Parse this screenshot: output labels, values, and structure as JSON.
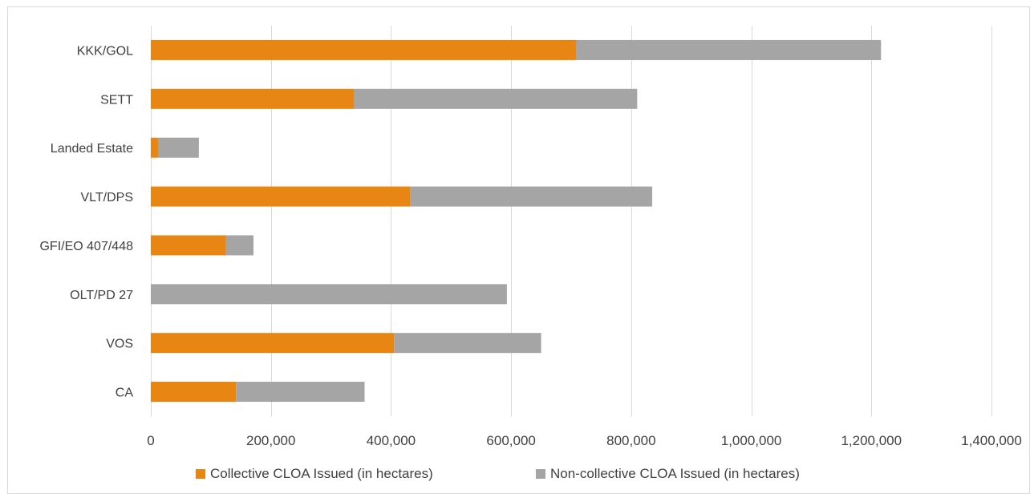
{
  "chart_data": {
    "type": "bar",
    "orientation": "horizontal",
    "stacked": true,
    "categories": [
      "KKK/GOL",
      "SETT",
      "Landed Estate",
      "VLT/DPS",
      "GFI/EO 407/448",
      "OLT/PD 27",
      "VOS",
      "CA"
    ],
    "series": [
      {
        "name": "Collective CLOA Issued (in hectares)",
        "color": "#e88613",
        "values": [
          708000,
          338000,
          12000,
          432000,
          125000,
          0,
          405000,
          142000
        ]
      },
      {
        "name": "Non-collective CLOA Issued (in hectares)",
        "color": "#a5a5a5",
        "values": [
          508000,
          472000,
          68000,
          403000,
          46000,
          593000,
          245000,
          214000
        ]
      }
    ],
    "xlim": [
      0,
      1400000
    ],
    "xticks": [
      0,
      200000,
      400000,
      600000,
      800000,
      1000000,
      1200000,
      1400000
    ],
    "xtick_labels": [
      "0",
      "200,000",
      "400,000",
      "600,000",
      "800,000",
      "1,000,000",
      "1,200,000",
      "1,400,000"
    ],
    "grid": true,
    "legend_position": "bottom",
    "title": "",
    "xlabel": "",
    "ylabel": ""
  }
}
